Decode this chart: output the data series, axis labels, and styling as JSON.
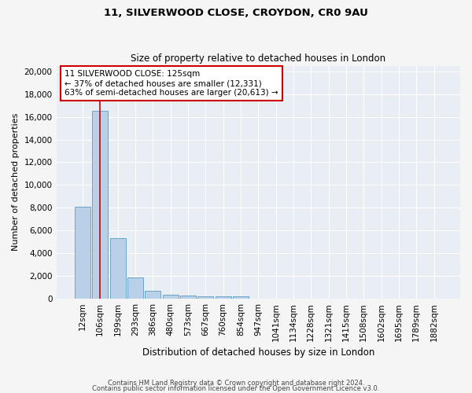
{
  "title_line1": "11, SILVERWOOD CLOSE, CROYDON, CR0 9AU",
  "title_line2": "Size of property relative to detached houses in London",
  "xlabel": "Distribution of detached houses by size in London",
  "ylabel": "Number of detached properties",
  "categories": [
    "12sqm",
    "106sqm",
    "199sqm",
    "293sqm",
    "386sqm",
    "480sqm",
    "573sqm",
    "667sqm",
    "760sqm",
    "854sqm",
    "947sqm",
    "1041sqm",
    "1134sqm",
    "1228sqm",
    "1321sqm",
    "1415sqm",
    "1508sqm",
    "1602sqm",
    "1695sqm",
    "1789sqm",
    "1882sqm"
  ],
  "bar_heights": [
    8100,
    16500,
    5300,
    1850,
    700,
    380,
    280,
    220,
    200,
    180,
    0,
    0,
    0,
    0,
    0,
    0,
    0,
    0,
    0,
    0,
    0
  ],
  "bar_color": "#b8d0e8",
  "bar_edge_color": "#5a9cc5",
  "marker_color": "#cc0000",
  "annotation_text": "11 SILVERWOOD CLOSE: 125sqm\n← 37% of detached houses are smaller (12,331)\n63% of semi-detached houses are larger (20,613) →",
  "annotation_box_color": "#ffffff",
  "annotation_box_edge_color": "#cc0000",
  "ylim": [
    0,
    20500
  ],
  "yticks": [
    0,
    2000,
    4000,
    6000,
    8000,
    10000,
    12000,
    14000,
    16000,
    18000,
    20000
  ],
  "background_color": "#e8eef4",
  "grid_color": "#ffffff",
  "fig_background": "#f5f5f5",
  "footer_line1": "Contains HM Land Registry data © Crown copyright and database right 2024.",
  "footer_line2": "Contains public sector information licensed under the Open Government Licence v3.0."
}
